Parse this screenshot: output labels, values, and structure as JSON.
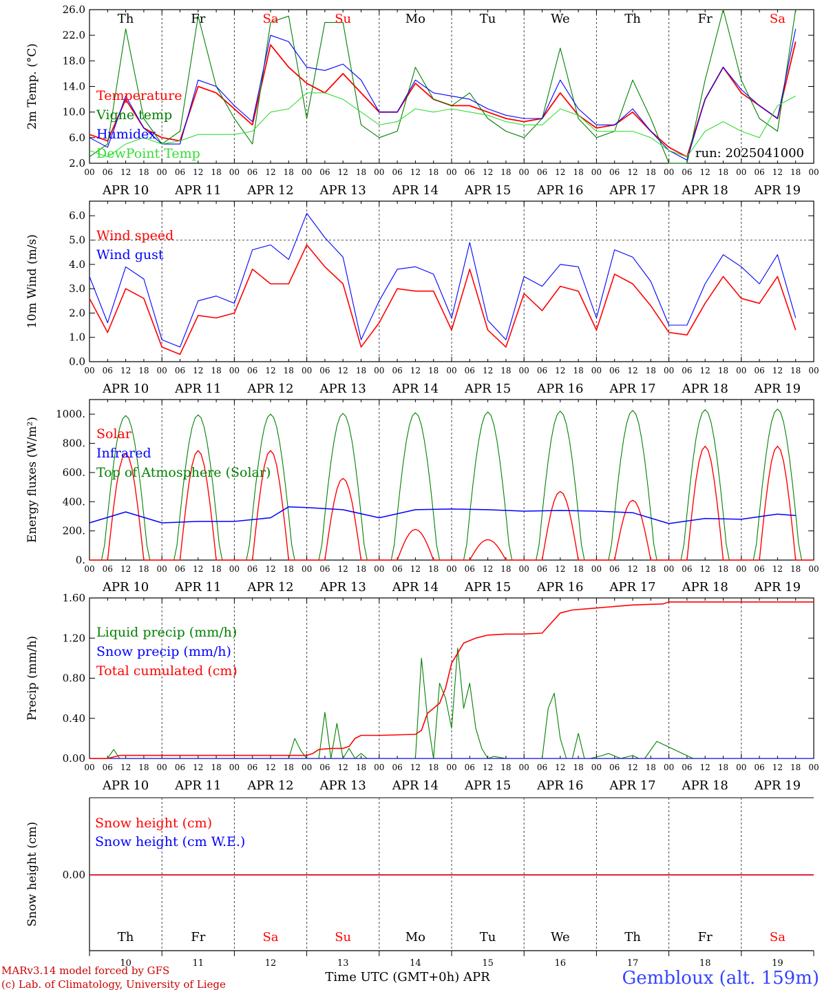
{
  "colors": {
    "red": "#ff0000",
    "darkgreen": "#008000",
    "blue": "#0000ff",
    "lightgreen": "#33dd33",
    "black": "#000000",
    "gray": "#555555",
    "credit": "#cc0000",
    "site": "#3344ff"
  },
  "days": {
    "weekdays": [
      "Th",
      "Fr",
      "Sa",
      "Su",
      "Mo",
      "Tu",
      "We",
      "Th",
      "Fr",
      "Sa"
    ],
    "weekday_colors": [
      "#000000",
      "#000000",
      "#ff0000",
      "#ff0000",
      "#000000",
      "#000000",
      "#000000",
      "#000000",
      "#000000",
      "#ff0000"
    ],
    "dates": [
      "APR 10",
      "APR 11",
      "APR 12",
      "APR 13",
      "APR 14",
      "APR 15",
      "APR 16",
      "APR 17",
      "APR 18",
      "APR 19"
    ],
    "day_numbers": [
      "10",
      "11",
      "12",
      "13",
      "14",
      "15",
      "16",
      "17",
      "18",
      "19"
    ],
    "hour_ticks": [
      "00",
      "06",
      "12",
      "18"
    ],
    "final_tick": "00"
  },
  "footer": {
    "credit_line1": "MARv3.14 model forced by GFS",
    "credit_line2": "(c) Lab. of Climatology, University of Liege",
    "xlabel": "Time UTC (GMT+0h) APR",
    "site": "Gembloux (alt. 159m)"
  },
  "chart_data": [
    {
      "type": "line",
      "ylabel": "2m Temp. (°C)",
      "ylim": [
        2,
        26
      ],
      "yticks": [
        "2.0",
        "6.0",
        "10.0",
        "14.0",
        "18.0",
        "22.0",
        "26.0"
      ],
      "annotation": "run: 2025041000",
      "x_units": "hours since APR 10 00 UTC",
      "series": [
        {
          "name": "Temperature",
          "color": "#ff0000",
          "x": [
            0,
            6,
            12,
            18,
            24,
            30,
            36,
            42,
            48,
            54,
            60,
            66,
            72,
            78,
            84,
            90,
            96,
            102,
            108,
            114,
            120,
            126,
            132,
            138,
            144,
            150,
            156,
            162,
            168,
            174,
            180,
            186,
            192,
            198,
            204,
            210,
            216,
            222,
            228,
            234
          ],
          "values": [
            6.5,
            5.5,
            12,
            7.5,
            6,
            5.5,
            14,
            13,
            10.5,
            8,
            20.5,
            17,
            14.5,
            13,
            16,
            13,
            10,
            10,
            14.5,
            12,
            11,
            11,
            10,
            9,
            8.5,
            9,
            13,
            9.5,
            7.5,
            8,
            10,
            7,
            4.5,
            3,
            12,
            17,
            13,
            11,
            9,
            21
          ]
        },
        {
          "name": "Vigne temp",
          "color": "#008000",
          "x": [
            0,
            6,
            12,
            18,
            24,
            30,
            36,
            42,
            48,
            54,
            60,
            66,
            72,
            78,
            84,
            90,
            96,
            102,
            108,
            114,
            120,
            126,
            132,
            138,
            144,
            150,
            156,
            162,
            168,
            174,
            180,
            186,
            192,
            198,
            204,
            210,
            216,
            222,
            228,
            234
          ],
          "values": [
            3,
            5,
            23,
            9,
            5,
            7,
            25,
            14,
            9,
            5,
            24,
            25,
            9,
            24,
            24,
            8,
            6,
            7,
            17,
            12,
            11,
            13,
            9,
            7,
            6,
            9,
            20,
            9,
            6,
            7,
            15,
            9,
            2,
            2,
            15,
            26,
            15,
            9,
            7,
            26
          ]
        },
        {
          "name": "Humidex",
          "color": "#0000ff",
          "x": [
            0,
            6,
            12,
            18,
            24,
            30,
            36,
            42,
            48,
            54,
            60,
            66,
            72,
            78,
            84,
            90,
            96,
            102,
            108,
            114,
            120,
            126,
            132,
            138,
            144,
            150,
            156,
            162,
            168,
            174,
            180,
            186,
            192,
            198,
            204,
            210,
            216,
            222,
            228,
            234
          ],
          "values": [
            6,
            4.5,
            12.5,
            7.5,
            5,
            5,
            15,
            14,
            11,
            8.5,
            22,
            21,
            17,
            16.5,
            17.5,
            15,
            10,
            10,
            15,
            13,
            12.5,
            12,
            10.5,
            9.5,
            9,
            9,
            15,
            10.5,
            8,
            8,
            10.5,
            7,
            4,
            2.5,
            12,
            17,
            13.5,
            11,
            9,
            23
          ]
        },
        {
          "name": "DewPoint Temp",
          "color": "#33dd33",
          "x": [
            0,
            6,
            12,
            18,
            24,
            30,
            36,
            42,
            48,
            54,
            60,
            66,
            72,
            78,
            84,
            90,
            96,
            102,
            108,
            114,
            120,
            126,
            132,
            138,
            144,
            150,
            156,
            162,
            168,
            174,
            180,
            186,
            192,
            198,
            204,
            210,
            216,
            222,
            228,
            234
          ],
          "values": [
            4,
            3,
            5,
            6,
            5,
            5.5,
            6.5,
            6.5,
            6.5,
            7,
            10,
            10.5,
            13,
            13,
            12,
            10,
            8,
            8.5,
            10.5,
            10,
            10.5,
            10,
            9.5,
            8.5,
            8,
            8,
            10.5,
            9.5,
            7,
            7,
            7,
            6,
            4,
            3,
            7,
            8.5,
            7,
            6,
            11,
            12.5
          ]
        }
      ]
    },
    {
      "type": "line",
      "ylabel": "10m Wind (m/s)",
      "ylim": [
        0,
        6.6
      ],
      "yticks": [
        "0.0",
        "1.0",
        "2.0",
        "3.0",
        "4.0",
        "5.0",
        "6.0"
      ],
      "reference_line": 5.0,
      "x_units": "hours since APR 10 00 UTC",
      "series": [
        {
          "name": "Wind speed",
          "color": "#ff0000",
          "x": [
            0,
            6,
            12,
            18,
            24,
            30,
            36,
            42,
            48,
            54,
            60,
            66,
            72,
            78,
            84,
            90,
            96,
            102,
            108,
            114,
            120,
            126,
            132,
            138,
            144,
            150,
            156,
            162,
            168,
            174,
            180,
            186,
            192,
            198,
            204,
            210,
            216,
            222,
            228,
            234
          ],
          "values": [
            2.6,
            1.2,
            3,
            2.6,
            0.6,
            0.3,
            1.9,
            1.8,
            2,
            3.8,
            3.2,
            3.2,
            4.8,
            3.9,
            3.2,
            0.6,
            1.6,
            3,
            2.9,
            2.9,
            1.3,
            3.8,
            1.3,
            0.6,
            2.8,
            2.1,
            3.1,
            2.9,
            1.3,
            3.6,
            3.2,
            2.3,
            1.2,
            1.1,
            2.4,
            3.5,
            2.6,
            2.4,
            3.5,
            1.3
          ]
        },
        {
          "name": "Wind gust",
          "color": "#0000ff",
          "x": [
            0,
            6,
            12,
            18,
            24,
            30,
            36,
            42,
            48,
            54,
            60,
            66,
            72,
            78,
            84,
            90,
            96,
            102,
            108,
            114,
            120,
            126,
            132,
            138,
            144,
            150,
            156,
            162,
            168,
            174,
            180,
            186,
            192,
            198,
            204,
            210,
            216,
            222,
            228,
            234
          ],
          "values": [
            3.5,
            1.6,
            3.9,
            3.4,
            0.9,
            0.6,
            2.5,
            2.7,
            2.4,
            4.6,
            4.8,
            4.2,
            6.1,
            5.1,
            4.3,
            0.9,
            2.5,
            3.8,
            3.9,
            3.6,
            1.8,
            4.9,
            1.7,
            0.9,
            3.5,
            3.1,
            4,
            3.9,
            1.8,
            4.6,
            4.3,
            3.3,
            1.5,
            1.5,
            3.2,
            4.4,
            3.9,
            3.2,
            4.4,
            1.8
          ]
        }
      ]
    },
    {
      "type": "line",
      "ylabel": "Energy fluxes (W/m²)",
      "ylim": [
        0,
        1100
      ],
      "yticks": [
        "0.",
        "200.",
        "400.",
        "600.",
        "800.",
        "1000."
      ],
      "x_units": "hours since APR 10 00 UTC",
      "series": [
        {
          "name": "Solar",
          "color": "#ff0000",
          "peaks": [
            730,
            750,
            750,
            560,
            210,
            140,
            470,
            410,
            780,
            780
          ]
        },
        {
          "name": "Infrared",
          "color": "#0000ff",
          "x": [
            0,
            12,
            24,
            36,
            48,
            60,
            66,
            72,
            84,
            96,
            108,
            120,
            132,
            144,
            156,
            168,
            180,
            192,
            204,
            216,
            228,
            234
          ],
          "values": [
            255,
            330,
            255,
            265,
            265,
            290,
            365,
            360,
            345,
            290,
            345,
            350,
            345,
            335,
            340,
            335,
            325,
            250,
            285,
            280,
            315,
            305
          ]
        },
        {
          "name": "Top of Atmosphere (Solar)",
          "color": "#008000",
          "peaks": [
            990,
            995,
            1000,
            1005,
            1010,
            1015,
            1020,
            1025,
            1030,
            1035
          ]
        }
      ]
    },
    {
      "type": "line",
      "ylabel": "Precip (mm/h)",
      "ylim": [
        0,
        1.6
      ],
      "yticks": [
        "0.00",
        "0.40",
        "0.80",
        "1.20",
        "1.60"
      ],
      "x_units": "hours since APR 10 00 UTC",
      "series": [
        {
          "name": "Liquid precip (mm/h)",
          "color": "#008000",
          "x": [
            0,
            6,
            8,
            10,
            12,
            66,
            68,
            70,
            72,
            76,
            78,
            80,
            82,
            84,
            86,
            88,
            90,
            92,
            108,
            110,
            112,
            114,
            116,
            118,
            120,
            122,
            124,
            126,
            128,
            130,
            132,
            134,
            138,
            150,
            152,
            154,
            156,
            158,
            160,
            162,
            164,
            166,
            170,
            172,
            176,
            180,
            182,
            184,
            188,
            200,
            240
          ],
          "values": [
            0,
            0,
            0.09,
            0,
            0,
            0,
            0.2,
            0.08,
            0,
            0,
            0.46,
            0,
            0.35,
            0,
            0.1,
            0,
            0.05,
            0,
            0,
            1.0,
            0.4,
            0,
            0.75,
            0.6,
            0.3,
            1.1,
            0.5,
            0.75,
            0.3,
            0.1,
            0,
            0.02,
            0,
            0,
            0.5,
            0.65,
            0.2,
            0,
            0,
            0.25,
            0,
            0,
            0.03,
            0.05,
            0,
            0.03,
            0,
            0,
            0.17,
            0,
            0
          ]
        },
        {
          "name": "Snow precip (mm/h)",
          "color": "#0000ff",
          "x": [
            0,
            240
          ],
          "values": [
            0,
            0
          ]
        },
        {
          "name": "Total cumulated (cm)",
          "color": "#ff0000",
          "x": [
            0,
            6,
            10,
            72,
            74,
            76,
            80,
            84,
            86,
            88,
            90,
            96,
            108,
            110,
            112,
            114,
            116,
            118,
            120,
            122,
            124,
            128,
            132,
            138,
            144,
            150,
            156,
            160,
            168,
            180,
            190,
            192,
            200,
            216,
            240
          ],
          "values": [
            0,
            0,
            0.03,
            0.03,
            0.05,
            0.09,
            0.1,
            0.1,
            0.12,
            0.2,
            0.23,
            0.23,
            0.24,
            0.28,
            0.45,
            0.5,
            0.55,
            0.7,
            0.95,
            1.05,
            1.15,
            1.2,
            1.23,
            1.24,
            1.24,
            1.25,
            1.45,
            1.48,
            1.5,
            1.53,
            1.54,
            1.56,
            1.56,
            1.56,
            1.56
          ]
        }
      ]
    },
    {
      "type": "line",
      "ylabel": "Snow height (cm)",
      "yticks": [
        "0.00"
      ],
      "x_units": "hours since APR 10 00 UTC",
      "series": [
        {
          "name": "Snow height (cm)",
          "color": "#ff0000",
          "x": [
            0,
            240
          ],
          "values": [
            0,
            0
          ]
        },
        {
          "name": "Snow height (cm W.E.)",
          "color": "#0000ff",
          "x": [
            0,
            240
          ],
          "values": [
            0,
            0
          ]
        }
      ]
    }
  ]
}
